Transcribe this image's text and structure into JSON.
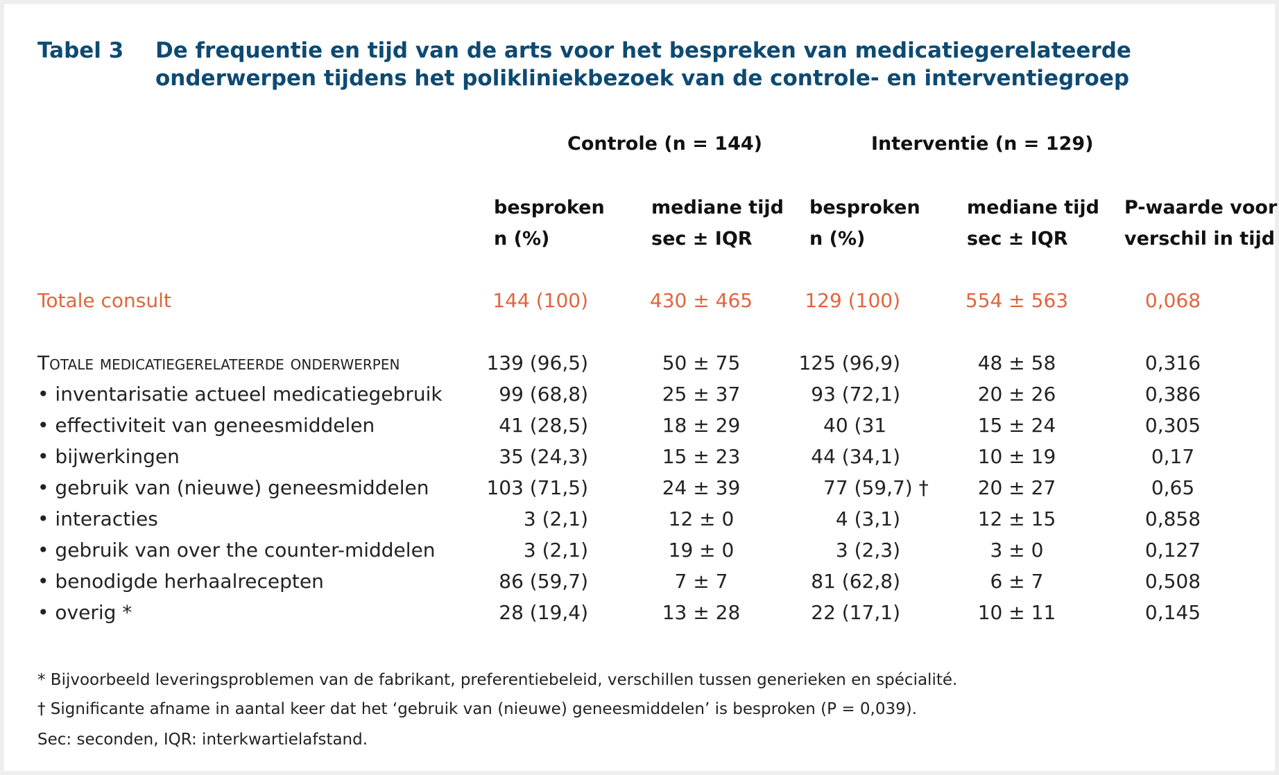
{
  "caption": {
    "label": "Tabel 3",
    "line1": "De frequentie en tijd van de arts voor het bespreken van medicatiegerelateerde",
    "line2": "onderwerpen tijdens het polikliniekbezoek van de controle- en interventiegroep"
  },
  "groups": {
    "controle": "Controle (n = 144)",
    "interventie": "Interventie (n = 129)"
  },
  "column_headers": {
    "c_besproken": [
      "besproken",
      "n (%)"
    ],
    "c_tijd": [
      "mediane tijd",
      "sec ± IQR"
    ],
    "i_besproken": [
      "besproken",
      "n (%)"
    ],
    "i_tijd": [
      "mediane tijd",
      "sec ± IQR"
    ],
    "p": [
      "P-waarde voor",
      "verschil in tijd"
    ]
  },
  "total_row": {
    "label": "Totale consult",
    "c_besproken": "144 (100)",
    "c_tijd": "430 ± 465",
    "i_besproken": "129 (100)",
    "i_tijd": "554 ± 563",
    "p": "0,068"
  },
  "section_row": {
    "label": "Totale medicatiegerelateerde onderwerpen",
    "c_besproken": "139 (96,5)",
    "c_tijd": "50 ± 75",
    "i_besproken": "125 (96,9)",
    "i_tijd": "48 ± 58",
    "p": "0,316"
  },
  "rows": [
    {
      "label": "• inventarisatie actueel medicatiegebruik",
      "c_besproken": "99 (68,8)",
      "c_tijd": "25 ± 37",
      "i_besproken": "93 (72,1)",
      "i_tijd": "20 ± 26",
      "p": "0,386"
    },
    {
      "label": "• effectiviteit van geneesmiddelen",
      "c_besproken": "41 (28,5)",
      "c_tijd": "18 ± 29",
      "i_besproken": "40 (31",
      "i_tijd": "15 ± 24",
      "p": "0,305"
    },
    {
      "label": "• bijwerkingen",
      "c_besproken": "35 (24,3)",
      "c_tijd": "15 ± 23",
      "i_besproken": "44 (34,1)",
      "i_tijd": "10 ± 19",
      "p": "0,17"
    },
    {
      "label": "• gebruik van (nieuwe) geneesmiddelen",
      "c_besproken": "103 (71,5)",
      "c_tijd": "24 ± 39",
      "i_besproken": "77 (59,7) †",
      "i_tijd": "20 ± 27",
      "p": "0,65"
    },
    {
      "label": "• interacties",
      "c_besproken": "3 (2,1)",
      "c_tijd": "12 ± 0",
      "i_besproken": "4 (3,1)",
      "i_tijd": "12 ± 15",
      "p": "0,858"
    },
    {
      "label": "• gebruik van over the counter-middelen",
      "c_besproken": "3 (2,1)",
      "c_tijd": "19 ± 0",
      "i_besproken": "3 (2,3)",
      "i_tijd": "3 ± 0",
      "p": "0,127"
    },
    {
      "label": "• benodigde herhaalrecepten",
      "c_besproken": "86 (59,7)",
      "c_tijd": "7 ± 7",
      "i_besproken": "81 (62,8)",
      "i_tijd": "6 ± 7",
      "p": "0,508"
    },
    {
      "label": "• overig *",
      "c_besproken": "28 (19,4)",
      "c_tijd": "13 ± 28",
      "i_besproken": "22 (17,1)",
      "i_tijd": "10 ± 11",
      "p": "0,145"
    }
  ],
  "footnotes": [
    "* Bijvoorbeeld leveringsproblemen van de fabrikant, preferentiebeleid, verschillen tussen generieken en spécialité.",
    "† Significante afname in aantal keer dat het ‘gebruik van (nieuwe) geneesmiddelen’ is besproken (P = 0,039).",
    "Sec: seconden, IQR: interkwartielafstand."
  ],
  "colors": {
    "caption": "#0d4a73",
    "highlight": "#e0653c"
  }
}
